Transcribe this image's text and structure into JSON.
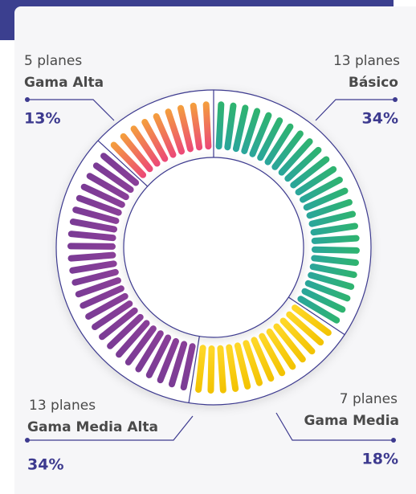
{
  "chart_data": {
    "type": "donut",
    "categories": [
      "Básico",
      "Gama Media",
      "Gama Media Alta",
      "Gama Alta"
    ],
    "values": [
      34,
      18,
      34,
      13
    ],
    "value_labels": [
      "34%",
      "18%",
      "34%",
      "13%"
    ],
    "plan_labels": [
      "13 planes",
      "7 planes",
      "13 planes",
      "5 planes"
    ],
    "colors": [
      [
        "#2fb46e",
        "#2aa59c"
      ],
      [
        "#f2c200",
        "#ffd92a"
      ],
      [
        "#7a3b95",
        "#8a3f98"
      ],
      [
        "#f4a03c",
        "#ec4778"
      ]
    ]
  }
}
